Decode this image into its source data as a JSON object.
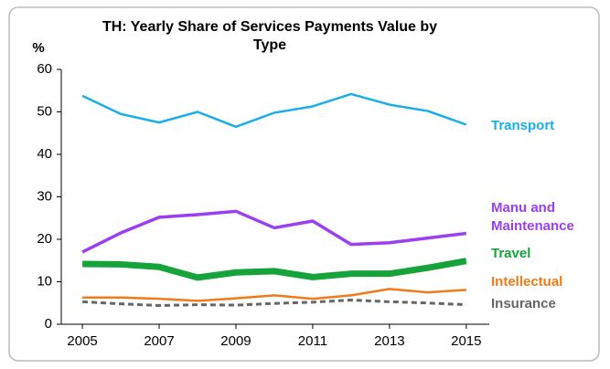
{
  "chart_data": {
    "type": "line",
    "title": "TH: Yearly Share of Services Payments Value by Type",
    "y_label": "%",
    "x": [
      2005,
      2006,
      2007,
      2008,
      2009,
      2010,
      2011,
      2012,
      2013,
      2014,
      2015
    ],
    "xlim": [
      2004.45,
      2015.6
    ],
    "xticks": [
      2005,
      2007,
      2009,
      2011,
      2013,
      2015
    ],
    "ylim": [
      0,
      60
    ],
    "yticks": [
      0,
      10,
      20,
      30,
      40,
      50,
      60
    ],
    "series": [
      {
        "name": "Transport",
        "color": "#1aaee8",
        "values": [
          53.8,
          49.5,
          47.5,
          50,
          46.5,
          49.8,
          51.3,
          54.2,
          51.7,
          50.2,
          47
        ]
      },
      {
        "name": "Manu and Maintenance",
        "color": "#9b3ff0",
        "values": [
          17,
          21.5,
          25.2,
          25.8,
          26.6,
          22.7,
          24.3,
          18.8,
          19.2,
          20.3,
          21.4
        ]
      },
      {
        "name": "Travel",
        "color": "#16a33a",
        "values": [
          14.2,
          14.1,
          13.5,
          11,
          12.2,
          12.5,
          11.1,
          11.9,
          11.9,
          13.3,
          14.9
        ]
      },
      {
        "name": "Intellectual",
        "color": "#f07b1a",
        "values": [
          6.3,
          6.3,
          6,
          5.5,
          6.1,
          6.8,
          6,
          6.8,
          8.3,
          7.5,
          8.1
        ]
      },
      {
        "name": "Insurance",
        "color": "#666666",
        "values": [
          5.3,
          4.8,
          4.4,
          4.6,
          4.5,
          4.9,
          5.2,
          5.7,
          5.3,
          5,
          4.6
        ]
      }
    ]
  }
}
